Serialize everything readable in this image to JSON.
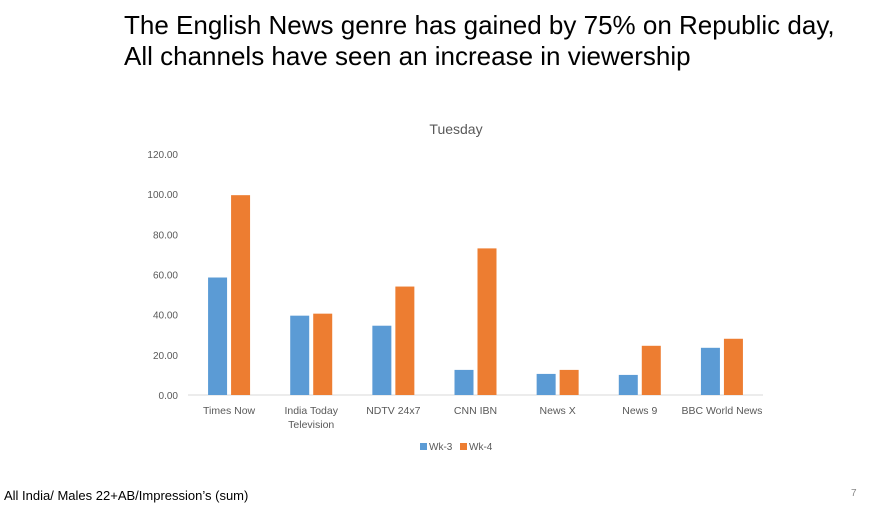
{
  "slide": {
    "title_line1": "The English News genre has gained by 75% on Republic day,",
    "title_line2": "All channels have seen an increase in viewership",
    "footer_note": "All India/ Males 22+AB/Impression’s (sum)",
    "page_number": "7"
  },
  "chart_data": {
    "type": "bar",
    "title": "Tuesday",
    "xlabel": "",
    "ylabel": "",
    "categories": [
      [
        "Times Now"
      ],
      [
        "India Today",
        "Television"
      ],
      [
        "NDTV 24x7"
      ],
      [
        "CNN IBN"
      ],
      [
        "News X"
      ],
      [
        "News 9"
      ],
      [
        "BBC World News"
      ]
    ],
    "series": [
      {
        "name": "Wk-3",
        "color": "#5B9BD5",
        "values": [
          58.5,
          39.5,
          34.5,
          12.5,
          10.5,
          10.0,
          23.5
        ]
      },
      {
        "name": "Wk-4",
        "color": "#ED7D31",
        "values": [
          99.5,
          40.5,
          54.0,
          73.0,
          12.5,
          24.5,
          28.0
        ]
      }
    ],
    "ylim": [
      0,
      120
    ],
    "yticks": [
      "0.00",
      "20.00",
      "40.00",
      "60.00",
      "80.00",
      "100.00",
      "120.00"
    ],
    "grid": false,
    "legend_position": "bottom"
  }
}
